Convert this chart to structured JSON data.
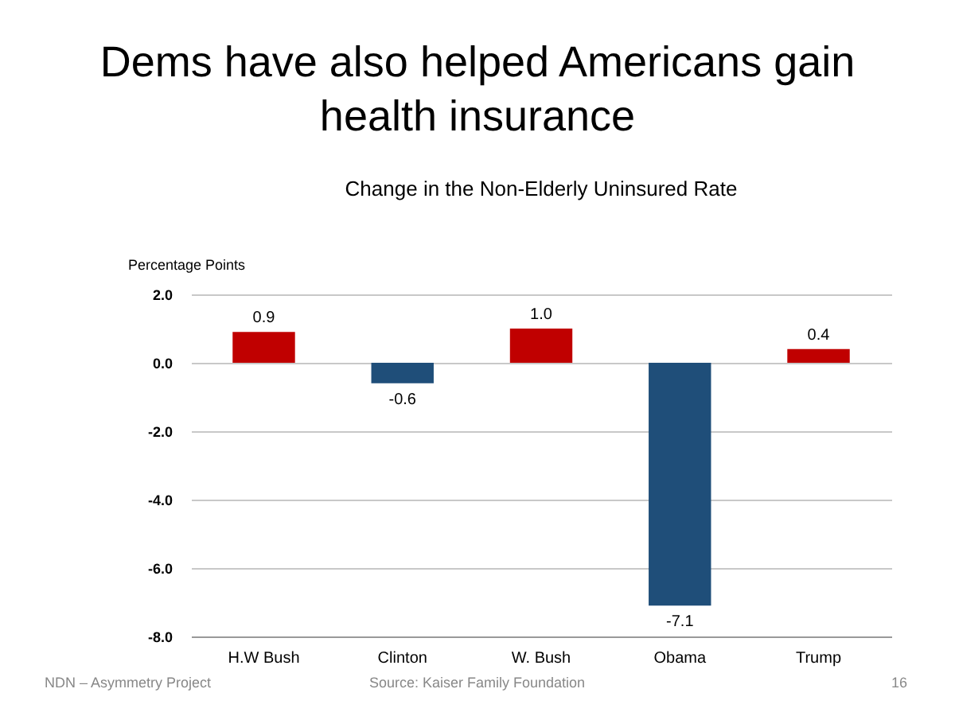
{
  "chart_data": {
    "type": "bar",
    "title": "Dems have also helped Americans gain health insurance",
    "subtitle": "Change in the Non-Elderly Uninsured Rate",
    "ylabel": "Percentage Points",
    "categories": [
      "H.W Bush",
      "Clinton",
      "W. Bush",
      "Obama",
      "Trump"
    ],
    "values": [
      0.9,
      -0.6,
      1.0,
      -7.1,
      0.4
    ],
    "value_labels": [
      "0.9",
      "-0.6",
      "1.0",
      "-7.1",
      "0.4"
    ],
    "colors": [
      "#c00000",
      "#1f4e79",
      "#c00000",
      "#1f4e79",
      "#c00000"
    ],
    "ylim": [
      -8,
      2
    ],
    "yticks": [
      {
        "value": -8,
        "label": "-8.0"
      },
      {
        "value": -6,
        "label": "-6.0"
      },
      {
        "value": -4,
        "label": "-4.0"
      },
      {
        "value": -2,
        "label": "-2.0"
      },
      {
        "value": 0,
        "label": "0.0"
      },
      {
        "value": 2,
        "label": "2.0"
      }
    ],
    "grid": "y",
    "legend": false,
    "annotations": [
      "NDN – Asymmetry Project",
      "Source: Kaiser Family Foundation",
      "16"
    ]
  }
}
